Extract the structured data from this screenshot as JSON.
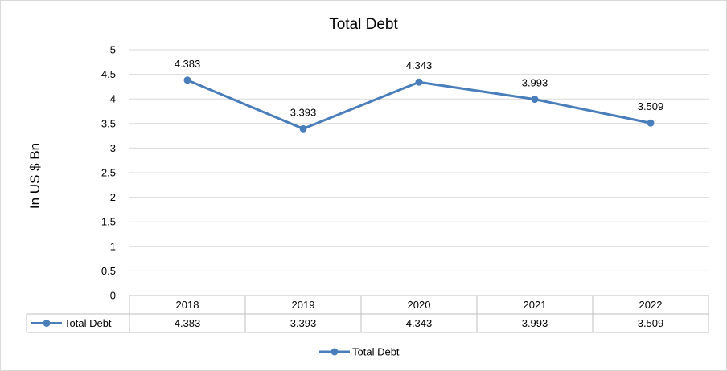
{
  "chart_data": {
    "type": "line",
    "title": "Total Debt",
    "ylabel": "In US $ Bn",
    "xlabel": "",
    "categories": [
      "2018",
      "2019",
      "2020",
      "2021",
      "2022"
    ],
    "series": [
      {
        "name": "Total Debt",
        "values": [
          4.383,
          3.393,
          4.343,
          3.993,
          3.509
        ],
        "color": "#4a7ebb"
      }
    ],
    "data_labels": [
      "4.383",
      "3.393",
      "4.343",
      "3.993",
      "3.509"
    ],
    "table_values": [
      "4.383",
      "3.393",
      "4.343",
      "3.993",
      "3.509"
    ],
    "ylim": [
      0,
      5
    ],
    "yticks": [
      "0",
      "0.5",
      "1",
      "1.5",
      "2",
      "2.5",
      "3",
      "3.5",
      "4",
      "4.5",
      "5"
    ],
    "grid": true,
    "legend": "bottom-center",
    "data_table": true
  }
}
